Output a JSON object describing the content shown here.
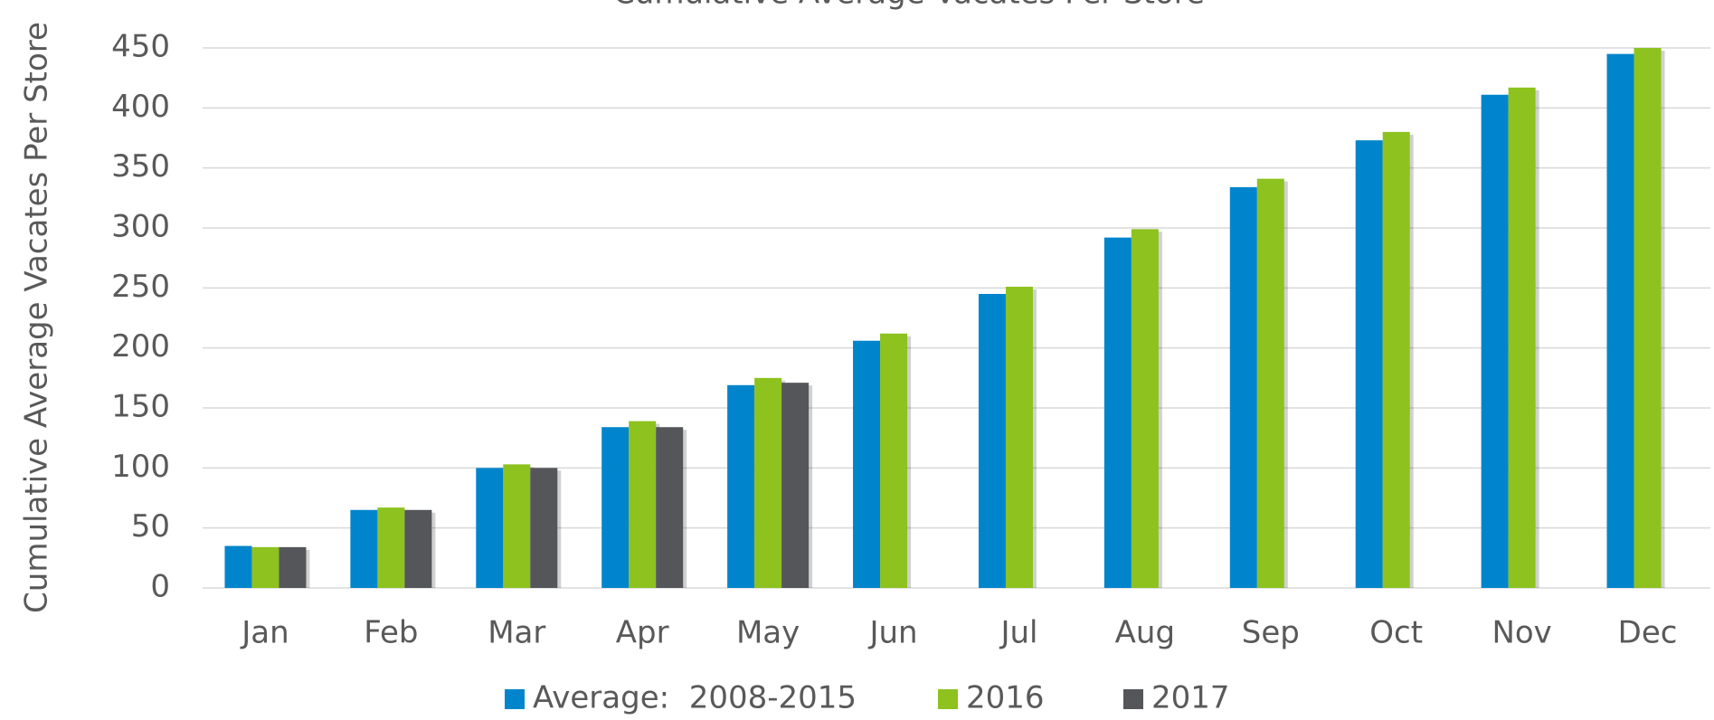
{
  "chart_data": {
    "type": "bar",
    "title": "Cumulative Average Vacates Per Store",
    "y_label": "Cumulative Average Vacates Per Store",
    "categories": [
      "Jan",
      "Feb",
      "Mar",
      "Apr",
      "May",
      "Jun",
      "Jul",
      "Aug",
      "Sep",
      "Oct",
      "Nov",
      "Dec"
    ],
    "series": [
      {
        "name": "Average:  2008-2015",
        "color": "#0085cc",
        "values": [
          35,
          65,
          100,
          134,
          169,
          206,
          245,
          292,
          334,
          373,
          411,
          445
        ]
      },
      {
        "name": "2016",
        "color": "#8dc21f",
        "values": [
          34,
          67,
          103,
          139,
          175,
          212,
          251,
          299,
          341,
          380,
          417,
          450
        ]
      },
      {
        "name": "2017",
        "color": "#55565a",
        "values": [
          34,
          65,
          100,
          134,
          171,
          null,
          null,
          null,
          null,
          null,
          null,
          null
        ]
      }
    ],
    "ylim": [
      0,
      450
    ],
    "yticks": [
      0,
      50,
      100,
      150,
      200,
      250,
      300,
      350,
      400,
      450
    ],
    "grid": true,
    "legend": "bottom"
  }
}
